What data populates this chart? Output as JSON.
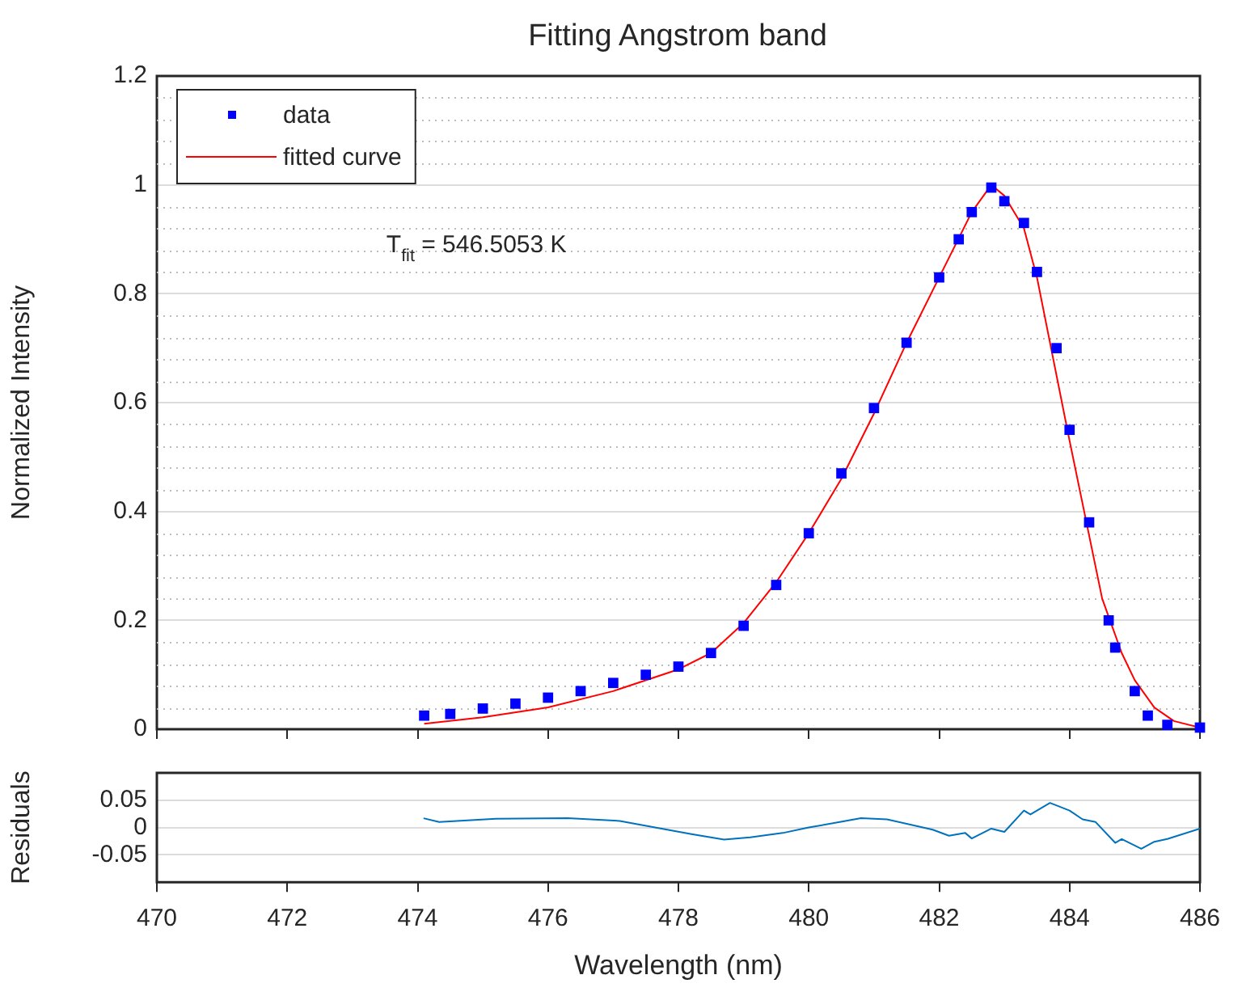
{
  "chart_data": [
    {
      "type": "line",
      "title": "Fitting Angstrom band",
      "ylabel": "Normalized Intensity",
      "annotations": [
        "T$_{fit}$ = 546.5053 K"
      ],
      "xlim": [
        470,
        486
      ],
      "xticks": [
        470,
        472,
        474,
        476,
        478,
        480,
        482,
        484,
        486
      ],
      "ylim": [
        0,
        1.2
      ],
      "yticks": [
        0,
        {
          "value": 0.04,
          "label": null
        },
        {
          "value": 0.08,
          "label": null
        },
        {
          "value": 0.12,
          "label": null
        },
        {
          "value": 0.16,
          "label": null
        },
        0.2,
        {
          "value": 0.24,
          "label": null
        },
        {
          "value": 0.28,
          "label": null
        },
        {
          "value": 0.32,
          "label": null
        },
        {
          "value": 0.36,
          "label": null
        },
        0.4,
        {
          "value": 0.44,
          "label": null
        },
        {
          "value": 0.48,
          "label": null
        },
        {
          "value": 0.52,
          "label": null
        },
        {
          "value": 0.56,
          "label": null
        },
        0.6,
        {
          "value": 0.64,
          "label": null
        },
        {
          "value": 0.68,
          "label": null
        },
        {
          "value": 0.72,
          "label": null
        },
        {
          "value": 0.76,
          "label": null
        },
        0.8,
        {
          "value": 0.84,
          "label": null
        },
        {
          "value": 0.88,
          "label": null
        },
        {
          "value": 0.92,
          "label": null
        },
        {
          "value": 0.96,
          "label": null
        },
        1,
        {
          "value": 1.04,
          "label": null
        },
        {
          "value": 1.08,
          "label": null
        },
        {
          "value": 1.12,
          "label": null
        },
        {
          "value": 1.16,
          "label": null
        },
        1.2
      ],
      "tick_labels": "y",
      "grid": "y",
      "legend": "top left",
      "series": [
        {
          "name": "data",
          "type": "scatter",
          "marker": "square",
          "color": "#0000ff",
          "x": [
            474.1,
            474.5,
            475,
            475.5,
            476,
            476.5,
            477,
            477.5,
            478,
            478.5,
            479,
            479.5,
            480,
            480.5,
            481,
            481.5,
            482,
            482.3,
            482.5,
            482.8,
            483,
            483.3,
            483.5,
            483.8,
            484,
            484.3,
            484.6,
            484.7,
            485,
            485.2,
            485.5,
            486
          ],
          "values": [
            0.025,
            0.028,
            0.038,
            0.047,
            0.058,
            0.07,
            0.085,
            0.1,
            0.115,
            0.14,
            0.19,
            0.265,
            0.36,
            0.47,
            0.59,
            0.71,
            0.83,
            0.9,
            0.95,
            0.995,
            0.97,
            0.93,
            0.84,
            0.7,
            0.55,
            0.38,
            0.2,
            0.15,
            0.07,
            0.025,
            0.008,
            0.003
          ]
        },
        {
          "name": "fitted curve",
          "type": "line",
          "color": "#ff0000",
          "x": [
            474.1,
            475,
            476,
            477,
            478,
            478.5,
            479,
            479.5,
            480,
            480.5,
            481,
            481.5,
            482,
            482.5,
            482.8,
            483,
            483.3,
            483.5,
            484,
            484.5,
            484.8,
            485,
            485.3,
            485.6,
            486
          ],
          "values": [
            0.01,
            0.022,
            0.04,
            0.07,
            0.11,
            0.14,
            0.195,
            0.27,
            0.36,
            0.46,
            0.58,
            0.71,
            0.83,
            0.95,
            1,
            0.98,
            0.92,
            0.83,
            0.53,
            0.24,
            0.14,
            0.09,
            0.04,
            0.015,
            0.003
          ]
        }
      ]
    },
    {
      "type": "line",
      "xlabel": "Wavelength (nm)",
      "ylabel": "Residuals",
      "xlim": [
        470,
        486
      ],
      "xticks": [
        470,
        472,
        474,
        476,
        478,
        480,
        482,
        484,
        486
      ],
      "ylim": [
        -0.1,
        0.1
      ],
      "yticks": [
        -0.05,
        0,
        0.05
      ],
      "grid": "y",
      "series": [
        {
          "color": "#0072bd",
          "x": [
            474.09,
            474.33,
            475.2,
            476.3,
            477.1,
            478.2,
            478.7,
            479.1,
            479.6,
            480,
            480.8,
            481.2,
            481.9,
            482.15,
            482.4,
            482.5,
            482.8,
            483,
            483.3,
            483.4,
            483.7,
            484,
            484.2,
            484.4,
            484.7,
            484.8,
            485.1,
            485.3,
            485.5,
            486
          ],
          "values": [
            0.017,
            0.01,
            0.016,
            0.017,
            0.012,
            -0.012,
            -0.022,
            -0.018,
            -0.01,
            0,
            0.017,
            0.015,
            -0.004,
            -0.015,
            -0.01,
            -0.02,
            -0.002,
            -0.008,
            0.031,
            0.024,
            0.045,
            0.031,
            0.015,
            0.01,
            -0.028,
            -0.021,
            -0.039,
            -0.026,
            -0.021,
            -0.002
          ]
        }
      ]
    }
  ]
}
